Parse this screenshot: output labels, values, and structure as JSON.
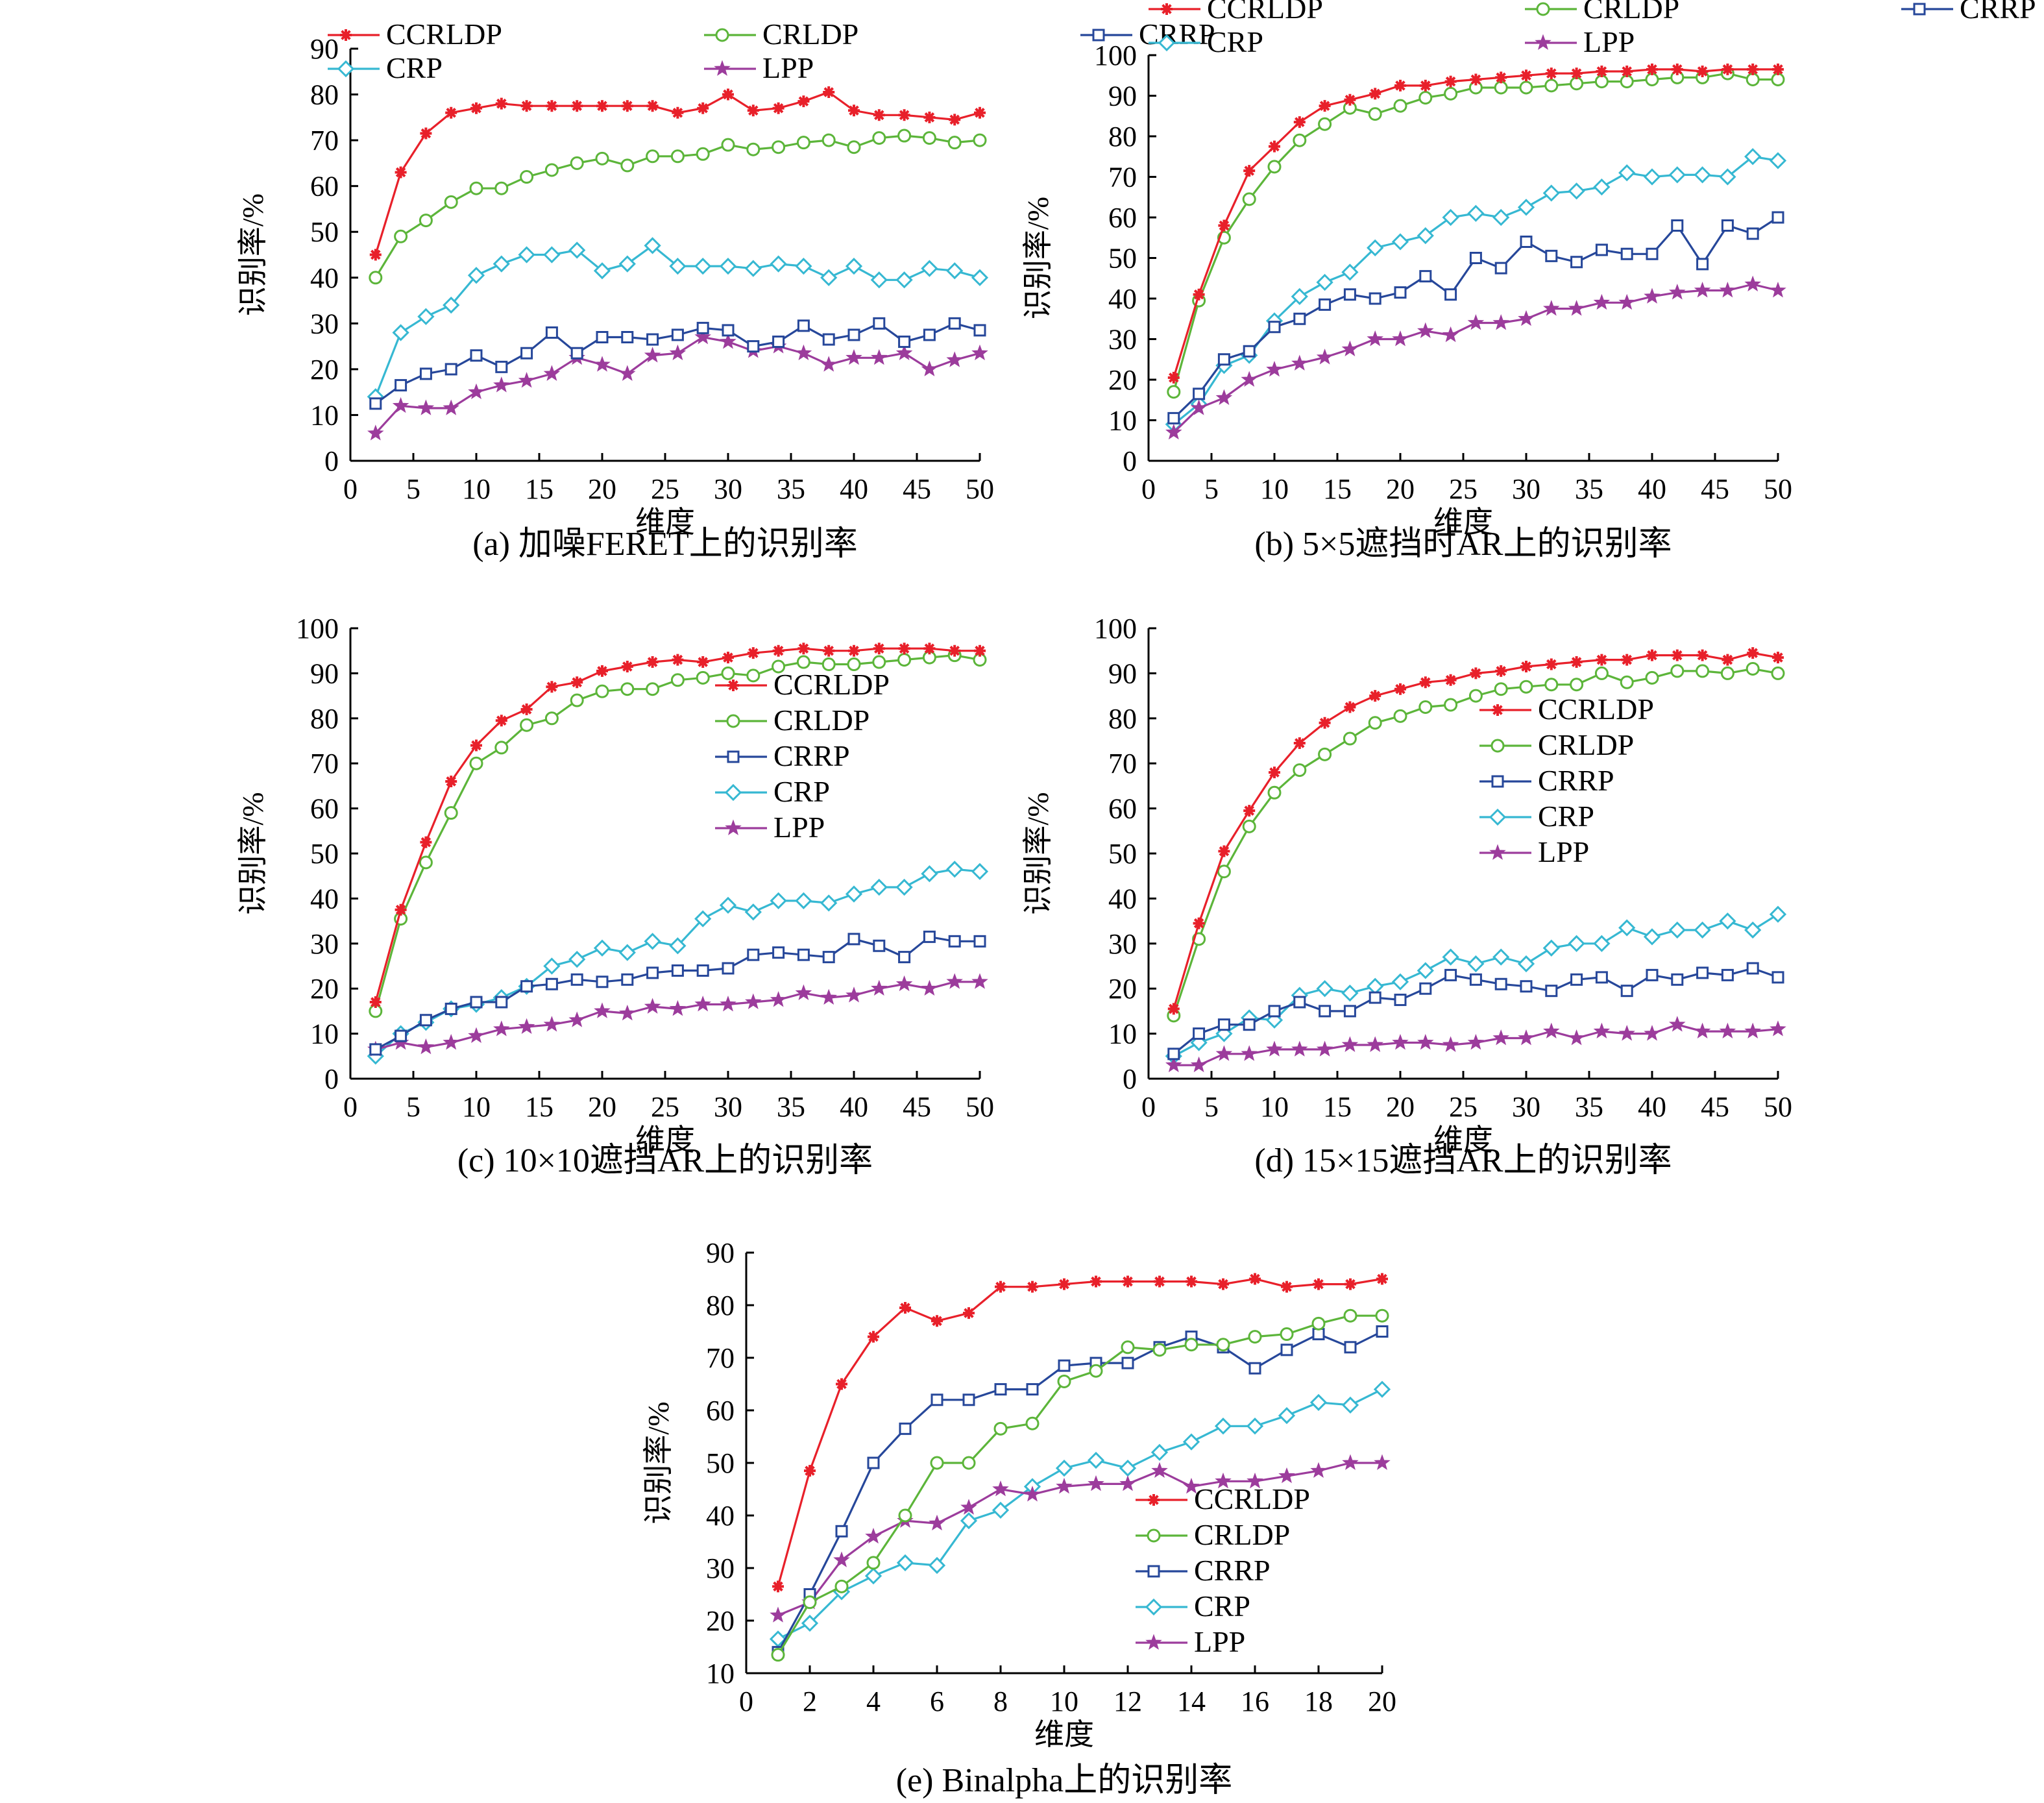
{
  "figure": {
    "ylabel": "识别率/%",
    "xlabel": "维度"
  },
  "colors": {
    "CCRLDP": "#e8202a",
    "CRLDP": "#5cb53a",
    "CRRP": "#26479a",
    "CRP": "#36b8d2",
    "LPP": "#9c3c9c",
    "axis": "#000000"
  },
  "chart_data": [
    {
      "type": "line",
      "title": "(a) 加噪FERET上的识别率",
      "xlabel": "维度",
      "ylabel": "识别率/%",
      "xlim": [
        0,
        50
      ],
      "ylim": [
        0,
        90
      ],
      "xticks": [
        0,
        5,
        10,
        15,
        20,
        25,
        30,
        35,
        40,
        45,
        50
      ],
      "yticks": [
        0,
        10,
        20,
        30,
        40,
        50,
        60,
        70,
        80,
        90
      ],
      "legend_position": "top-inside",
      "x": [
        2,
        4,
        6,
        8,
        10,
        12,
        14,
        16,
        18,
        20,
        22,
        24,
        26,
        28,
        30,
        32,
        34,
        36,
        38,
        40,
        42,
        44,
        46,
        48,
        50
      ],
      "series": [
        {
          "name": "CCRLDP",
          "marker": "asterisk",
          "values": [
            45,
            63,
            71.5,
            76,
            77,
            78,
            77.5,
            77.5,
            77.5,
            77.5,
            77.5,
            77.5,
            76,
            77,
            80,
            76.5,
            77,
            78.5,
            80.5,
            76.5,
            75.5,
            75.5,
            75,
            74.5,
            76
          ]
        },
        {
          "name": "CRLDP",
          "marker": "circle",
          "values": [
            40,
            49,
            52.5,
            56.5,
            59.5,
            59.5,
            62,
            63.5,
            65,
            66,
            64.5,
            66.5,
            66.5,
            67,
            69,
            68,
            68.5,
            69.5,
            70,
            68.5,
            70.5,
            71,
            70.5,
            69.5,
            70
          ]
        },
        {
          "name": "CRRP",
          "marker": "square",
          "values": [
            12.5,
            16.5,
            19,
            20,
            23,
            20.5,
            23.5,
            28,
            23.5,
            27,
            27,
            26.5,
            27.5,
            29,
            28.5,
            25,
            26,
            29.5,
            26.5,
            27.5,
            30,
            26,
            27.5,
            30,
            28.5
          ]
        },
        {
          "name": "CRP",
          "marker": "diamond",
          "values": [
            14,
            28,
            31.5,
            34,
            40.5,
            43,
            45,
            45,
            46,
            41.5,
            43,
            47,
            42.5,
            42.5,
            42.5,
            42,
            43,
            42.5,
            40,
            42.5,
            39.5,
            39.5,
            42,
            41.5,
            40
          ]
        },
        {
          "name": "LPP",
          "marker": "star",
          "values": [
            6,
            12,
            11.5,
            11.5,
            15,
            16.5,
            17.5,
            19,
            22.5,
            21,
            19,
            23,
            23.5,
            27,
            26,
            24,
            25,
            23.5,
            21,
            22.5,
            22.5,
            23.5,
            20,
            22,
            23.5
          ]
        }
      ]
    },
    {
      "type": "line",
      "title": "(b) 5×5遮挡时AR上的识别率",
      "xlabel": "维度",
      "ylabel": "识别率/%",
      "xlim": [
        0,
        50
      ],
      "ylim": [
        0,
        100
      ],
      "xticks": [
        0,
        5,
        10,
        15,
        20,
        25,
        30,
        35,
        40,
        45,
        50
      ],
      "yticks": [
        0,
        10,
        20,
        30,
        40,
        50,
        60,
        70,
        80,
        90,
        100
      ],
      "legend_position": "top-inside",
      "x": [
        2,
        4,
        6,
        8,
        10,
        12,
        14,
        16,
        18,
        20,
        22,
        24,
        26,
        28,
        30,
        32,
        34,
        36,
        38,
        40,
        42,
        44,
        46,
        48,
        50
      ],
      "series": [
        {
          "name": "CCRLDP",
          "marker": "asterisk",
          "values": [
            20.5,
            41,
            58,
            71.5,
            77.5,
            83.5,
            87.5,
            89,
            90.5,
            92.5,
            92.5,
            93.5,
            94,
            94.5,
            95,
            95.5,
            95.5,
            96,
            96,
            96.5,
            96.5,
            96,
            96.5,
            96.5,
            96.5
          ]
        },
        {
          "name": "CRLDP",
          "marker": "circle",
          "values": [
            17,
            39.5,
            55,
            64.5,
            72.5,
            79,
            83,
            87,
            85.5,
            87.5,
            89.5,
            90.5,
            92,
            92,
            92,
            92.5,
            93,
            93.5,
            93.5,
            94,
            94.5,
            94.5,
            95.5,
            94,
            94
          ]
        },
        {
          "name": "CRRP",
          "marker": "square",
          "values": [
            10.5,
            16.5,
            25,
            27,
            33,
            35,
            38.5,
            41,
            40,
            41.5,
            45.5,
            41,
            50,
            47.5,
            54,
            50.5,
            49,
            52,
            51,
            51,
            58,
            48.5,
            58,
            56,
            60
          ]
        },
        {
          "name": "CRP",
          "marker": "diamond",
          "values": [
            9,
            14,
            23.5,
            26,
            34.5,
            40.5,
            44,
            46.5,
            52.5,
            54,
            55.5,
            60,
            61,
            60,
            62.5,
            66,
            66.5,
            67.5,
            71,
            70,
            70.5,
            70.5,
            70,
            75,
            74
          ]
        },
        {
          "name": "LPP",
          "marker": "star",
          "values": [
            7,
            13,
            15.5,
            20,
            22.5,
            24,
            25.5,
            27.5,
            30,
            30,
            32,
            31,
            34,
            34,
            35,
            37.5,
            37.5,
            39,
            39,
            40.5,
            41.5,
            42,
            42,
            43.5,
            42
          ]
        }
      ]
    },
    {
      "type": "line",
      "title": "(c) 10×10遮挡AR上的识别率",
      "xlabel": "维度",
      "ylabel": "识别率/%",
      "xlim": [
        0,
        50
      ],
      "ylim": [
        0,
        100
      ],
      "xticks": [
        0,
        5,
        10,
        15,
        20,
        25,
        30,
        35,
        40,
        45,
        50
      ],
      "yticks": [
        0,
        10,
        20,
        30,
        40,
        50,
        60,
        70,
        80,
        90,
        100
      ],
      "legend_position": "right-inside",
      "x": [
        2,
        4,
        6,
        8,
        10,
        12,
        14,
        16,
        18,
        20,
        22,
        24,
        26,
        28,
        30,
        32,
        34,
        36,
        38,
        40,
        42,
        44,
        46,
        48,
        50
      ],
      "series": [
        {
          "name": "CCRLDP",
          "marker": "asterisk",
          "values": [
            17,
            37.5,
            52.5,
            66,
            74,
            79.5,
            82,
            87,
            88,
            90.5,
            91.5,
            92.5,
            93,
            92.5,
            93.5,
            94.5,
            95,
            95.5,
            95,
            95,
            95.5,
            95.5,
            95.5,
            95,
            95
          ]
        },
        {
          "name": "CRLDP",
          "marker": "circle",
          "values": [
            15,
            35.5,
            48,
            59,
            70,
            73.5,
            78.5,
            80,
            84,
            86,
            86.5,
            86.5,
            88.5,
            89,
            90,
            89.5,
            91.5,
            92.5,
            92,
            92,
            92.5,
            93,
            93.5,
            94,
            93
          ]
        },
        {
          "name": "CRRP",
          "marker": "square",
          "values": [
            6.5,
            9.5,
            13,
            15.5,
            17,
            17,
            20.5,
            21,
            22,
            21.5,
            22,
            23.5,
            24,
            24,
            24.5,
            27.5,
            28,
            27.5,
            27,
            31,
            29.5,
            27,
            31.5,
            30.5,
            30.5
          ]
        },
        {
          "name": "CRP",
          "marker": "diamond",
          "values": [
            5,
            10,
            12.5,
            15.5,
            16.5,
            18,
            20.5,
            25,
            26.5,
            29,
            28,
            30.5,
            29.5,
            35.5,
            38.5,
            37,
            39.5,
            39.5,
            39,
            41,
            42.5,
            42.5,
            45.5,
            46.5,
            46
          ]
        },
        {
          "name": "LPP",
          "marker": "star",
          "values": [
            6.5,
            8,
            7,
            8,
            9.5,
            11,
            11.5,
            12,
            13,
            15,
            14.5,
            16,
            15.5,
            16.5,
            16.5,
            17,
            17.5,
            19,
            18,
            18.5,
            20,
            21,
            20,
            21.5,
            21.5
          ]
        }
      ]
    },
    {
      "type": "line",
      "title": "(d) 15×15遮挡AR上的识别率",
      "xlabel": "维度",
      "ylabel": "识别率/%",
      "xlim": [
        0,
        50
      ],
      "ylim": [
        0,
        100
      ],
      "xticks": [
        0,
        5,
        10,
        15,
        20,
        25,
        30,
        35,
        40,
        45,
        50
      ],
      "yticks": [
        0,
        10,
        20,
        30,
        40,
        50,
        60,
        70,
        80,
        90,
        100
      ],
      "legend_position": "right-inside",
      "x": [
        2,
        4,
        6,
        8,
        10,
        12,
        14,
        16,
        18,
        20,
        22,
        24,
        26,
        28,
        30,
        32,
        34,
        36,
        38,
        40,
        42,
        44,
        46,
        48,
        50
      ],
      "series": [
        {
          "name": "CCRLDP",
          "marker": "asterisk",
          "values": [
            15.5,
            34.5,
            50.5,
            59.5,
            68,
            74.5,
            79,
            82.5,
            85,
            86.5,
            88,
            88.5,
            90,
            90.5,
            91.5,
            92,
            92.5,
            93,
            93,
            94,
            94,
            94,
            93,
            94.5,
            93.5
          ]
        },
        {
          "name": "CRLDP",
          "marker": "circle",
          "values": [
            14,
            31,
            46,
            56,
            63.5,
            68.5,
            72,
            75.5,
            79,
            80.5,
            82.5,
            83,
            85,
            86.5,
            87,
            87.5,
            87.5,
            90,
            88,
            89,
            90.5,
            90.5,
            90,
            91,
            90
          ]
        },
        {
          "name": "CRRP",
          "marker": "square",
          "values": [
            5.5,
            10,
            12,
            12,
            15,
            17,
            15,
            15,
            18,
            17.5,
            20,
            23,
            22,
            21,
            20.5,
            19.5,
            22,
            22.5,
            19.5,
            23,
            22,
            23.5,
            23,
            24.5,
            22.5
          ]
        },
        {
          "name": "CRP",
          "marker": "diamond",
          "values": [
            5,
            8,
            10,
            13.5,
            13,
            18.5,
            20,
            19,
            20.5,
            21.5,
            24,
            27,
            25.5,
            27,
            25.5,
            29,
            30,
            30,
            33.5,
            31.5,
            33,
            33,
            35,
            33,
            36.5
          ]
        },
        {
          "name": "LPP",
          "marker": "star",
          "values": [
            3,
            3,
            5.5,
            5.5,
            6.5,
            6.5,
            6.5,
            7.5,
            7.5,
            8,
            8,
            7.5,
            8,
            9,
            9,
            10.5,
            9,
            10.5,
            10,
            10,
            12,
            10.5,
            10.5,
            10.5,
            11
          ]
        }
      ]
    },
    {
      "type": "line",
      "title": "(e) Binalpha上的识别率",
      "xlabel": "维度",
      "ylabel": "识别率/%",
      "xlim": [
        0,
        20
      ],
      "ylim": [
        10,
        90
      ],
      "xticks": [
        0,
        2,
        4,
        6,
        8,
        10,
        12,
        14,
        16,
        18,
        20
      ],
      "yticks": [
        10,
        20,
        30,
        40,
        50,
        60,
        70,
        80,
        90
      ],
      "legend_position": "right-inside",
      "x": [
        1,
        2,
        3,
        4,
        5,
        6,
        7,
        8,
        9,
        10,
        11,
        12,
        13,
        14,
        15,
        16,
        17,
        18,
        19,
        20
      ],
      "series": [
        {
          "name": "CCRLDP",
          "marker": "asterisk",
          "values": [
            26.5,
            48.5,
            65,
            74,
            79.5,
            77,
            78.5,
            83.5,
            83.5,
            84,
            84.5,
            84.5,
            84.5,
            84.5,
            84,
            85,
            83.5,
            84,
            84,
            85
          ]
        },
        {
          "name": "CRLDP",
          "marker": "circle",
          "values": [
            13.5,
            23.5,
            26.5,
            31,
            40,
            50,
            50,
            56.5,
            57.5,
            65.5,
            67.5,
            72,
            71.5,
            72.5,
            72.5,
            74,
            74.5,
            76.5,
            78,
            78
          ]
        },
        {
          "name": "CRRP",
          "marker": "square",
          "values": [
            14,
            25,
            37,
            50,
            56.5,
            62,
            62,
            64,
            64,
            68.5,
            69,
            69,
            72,
            74,
            72,
            68,
            71.5,
            74.5,
            72,
            75
          ]
        },
        {
          "name": "CRP",
          "marker": "diamond",
          "values": [
            16.5,
            19.5,
            25.5,
            28.5,
            31,
            30.5,
            39,
            41,
            45.5,
            49,
            50.5,
            49,
            52,
            54,
            57,
            57,
            59,
            61.5,
            61,
            64
          ]
        },
        {
          "name": "LPP",
          "marker": "star",
          "values": [
            21,
            23.5,
            31.5,
            36,
            39,
            38.5,
            41.5,
            45,
            44,
            45.5,
            46,
            46,
            48.5,
            45.5,
            46.5,
            46.5,
            47.5,
            48.5,
            50,
            50
          ]
        }
      ]
    }
  ]
}
